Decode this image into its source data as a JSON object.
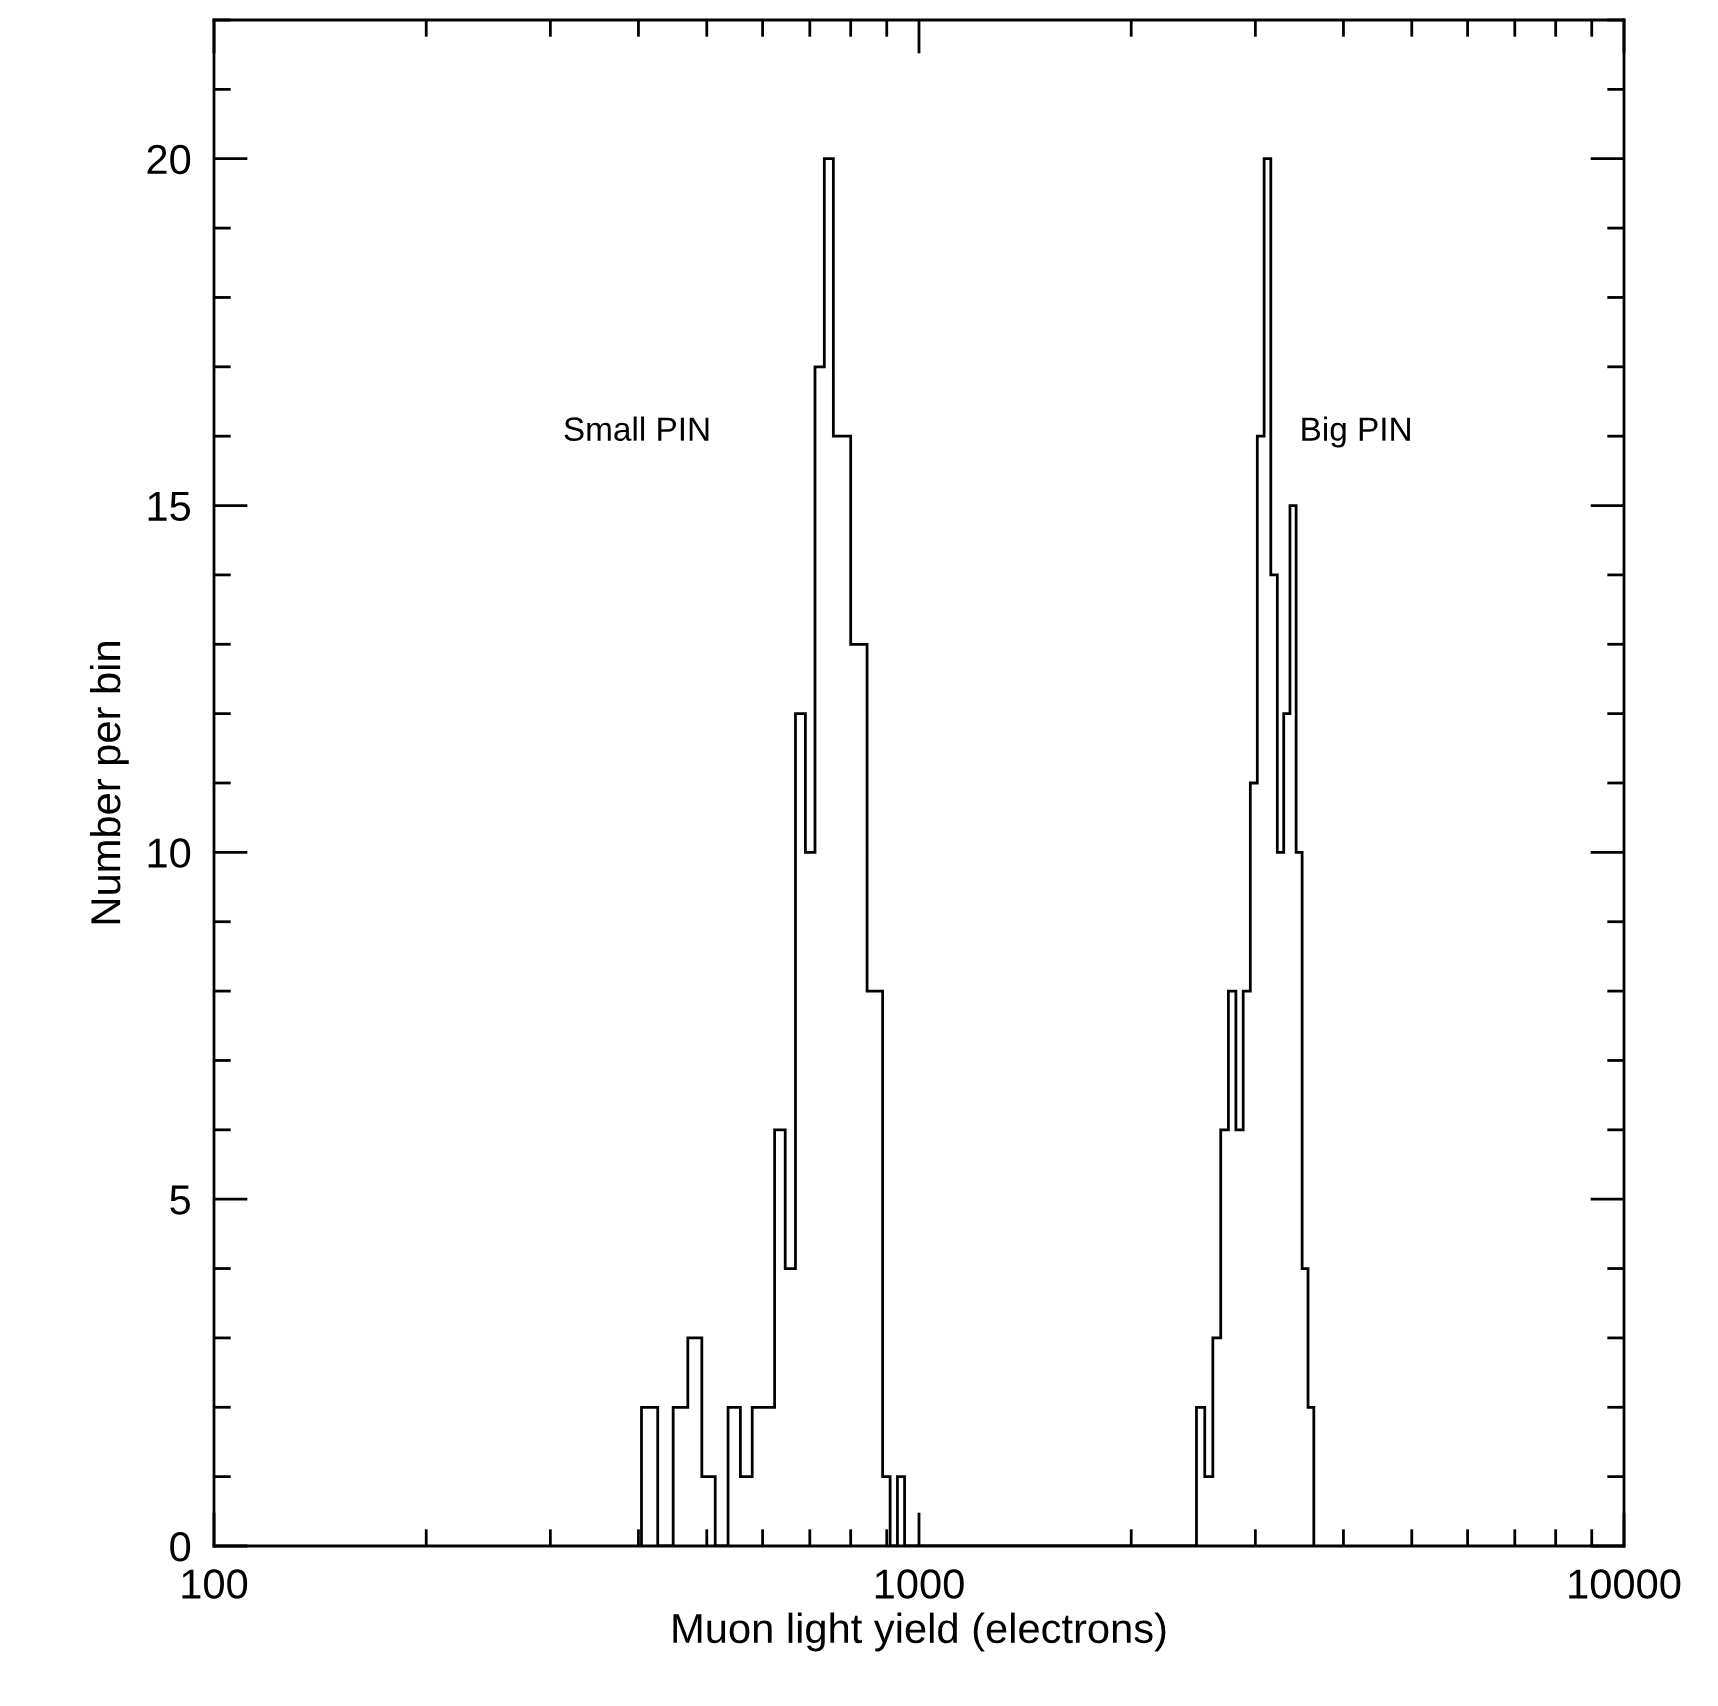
{
  "chart_data": {
    "type": "histogram",
    "xlabel": "Muon light yield (electrons)",
    "ylabel": "Number per bin",
    "log": "x",
    "xlim": [
      100,
      10000
    ],
    "xticks": [
      100,
      1000,
      10000
    ],
    "ylim": [
      0,
      22
    ],
    "yticks": [
      0,
      5,
      10,
      15,
      20
    ],
    "grid": false,
    "legend": false,
    "color": "#000000",
    "annotations": [
      "Small PIN",
      "Big PIN"
    ],
    "bins": [
      404,
      426,
      448,
      470,
      492,
      514,
      536,
      558,
      580,
      602,
      624,
      646,
      668,
      690,
      712,
      734,
      756,
      778,
      800,
      822,
      844,
      866,
      888,
      910,
      932,
      954,
      2475,
      2543,
      2611,
      2679,
      2747,
      2815,
      2883,
      2951,
      3019,
      3087,
      3155,
      3223,
      3291,
      3359,
      3427,
      3495,
      3563,
      3631
    ],
    "values": [
      2,
      0,
      2,
      3,
      1,
      0,
      2,
      1,
      2,
      2,
      6,
      4,
      12,
      10,
      17,
      20,
      16,
      16,
      13,
      13,
      8,
      8,
      1,
      0,
      1,
      0,
      2,
      1,
      3,
      6,
      8,
      6,
      8,
      11,
      16,
      20,
      14,
      10,
      12,
      15,
      10,
      4,
      2
    ]
  }
}
